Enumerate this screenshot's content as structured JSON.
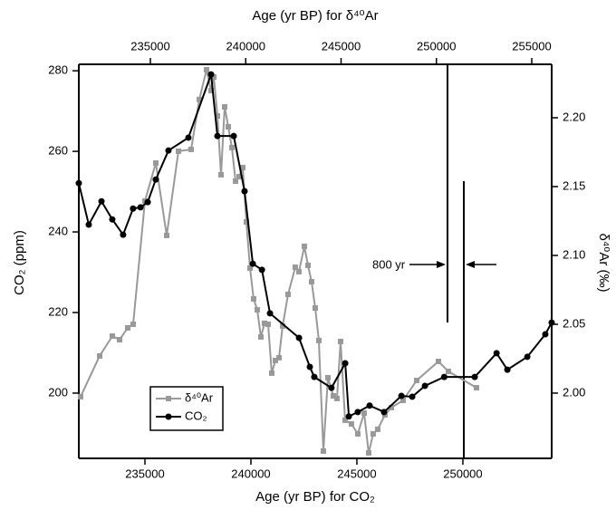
{
  "chart_data": {
    "type": "line",
    "x_label": "Age (yr BP) for CO₂",
    "x2_label": "Age (yr BP) for δ⁴⁰Ar",
    "y_label": "CO₂ (ppm)",
    "y2_label": "δ⁴⁰Ar (‰)",
    "annotation": "800 yr",
    "xlim": [
      231880,
      254190
    ],
    "xticks": [
      235000,
      240000,
      245000,
      250000
    ],
    "x2lim": [
      231247,
      256045
    ],
    "x2ticks": [
      235000,
      240000,
      245000,
      250000,
      255000
    ],
    "ylim": [
      183.8,
      281.6
    ],
    "yticks": [
      200,
      220,
      240,
      260,
      280
    ],
    "y2lim": [
      1.9526,
      2.2388
    ],
    "y2ticks": [
      {
        "value": 2.0,
        "label": "2.00"
      },
      2.05,
      {
        "value": 2.1,
        "label": "2.10"
      },
      2.15,
      {
        "value": 2.2,
        "label": "2.20"
      }
    ],
    "series": [
      {
        "name": "δ⁴⁰Ar",
        "color": "#999999",
        "marker": "square",
        "axis": "y2",
        "xaxis": "x2",
        "x": [
          231340,
          232340,
          233005,
          233385,
          233812,
          234097,
          234715,
          235285,
          235855,
          236472,
          237137,
          237565,
          237945,
          238182,
          238325,
          238515,
          238705,
          238895,
          239085,
          239275,
          239465,
          239655,
          239845,
          240035,
          240225,
          240415,
          240605,
          240795,
          240985,
          241175,
          241365,
          241555,
          241745,
          241935,
          242220,
          242600,
          242790,
          243075,
          243265,
          243455,
          243645,
          243835,
          244072,
          244310,
          244595,
          244785,
          244975,
          245212,
          245545,
          245877,
          246210,
          246447,
          246685,
          246922,
          247302,
          247635,
          248252,
          248965,
          250105,
          250627,
          252100
        ],
        "values": [
          1.9974,
          2.027,
          2.0414,
          2.0388,
          2.0474,
          2.05,
          2.1395,
          2.1671,
          2.1145,
          2.1757,
          2.177,
          2.2132,
          2.2349,
          2.2197,
          2.2296,
          2.2013,
          2.1586,
          2.2079,
          2.1934,
          2.1783,
          2.1539,
          2.1572,
          2.1638,
          2.1243,
          2.0908,
          2.0684,
          2.0605,
          2.0408,
          2.0507,
          2.05,
          2.0145,
          2.0237,
          2.0257,
          2.0487,
          2.0717,
          2.0914,
          2.0882,
          2.1066,
          2.0928,
          2.0809,
          2.0618,
          2.0382,
          1.9579,
          2.0112,
          1.998,
          1.9961,
          2.0375,
          1.9803,
          1.9776,
          1.9704,
          1.9855,
          1.9566,
          1.9704,
          1.9737,
          1.9842,
          1.9895,
          1.9947,
          2.0092,
          2.023,
          2.0158,
          2.0039
        ]
      },
      {
        "name": "CO₂",
        "color": "#000000",
        "marker": "circle",
        "x": [
          231880,
          232350,
          232950,
          233460,
          233970,
          234440,
          234790,
          235130,
          235510,
          236110,
          237050,
          238120,
          238420,
          239190,
          239700,
          240090,
          240520,
          240900,
          242270,
          242780,
          242990,
          243800,
          244450,
          244620,
          245040,
          245600,
          246280,
          247100,
          247610,
          248210,
          249120,
          250560,
          251590,
          252100,
          253040,
          253890,
          254190
        ],
        "values": [
          252.1,
          241.8,
          247.6,
          243.1,
          239.3,
          245.8,
          246.1,
          247.4,
          253.0,
          260.2,
          263.4,
          279.1,
          263.8,
          263.8,
          250.1,
          232.1,
          230.6,
          219.8,
          213.7,
          206.5,
          204.0,
          201.3,
          207.4,
          194.2,
          195.3,
          196.9,
          195.3,
          199.3,
          199.1,
          201.8,
          204.0,
          204.0,
          209.9,
          205.8,
          209.0,
          214.6,
          217.5
        ]
      }
    ]
  }
}
